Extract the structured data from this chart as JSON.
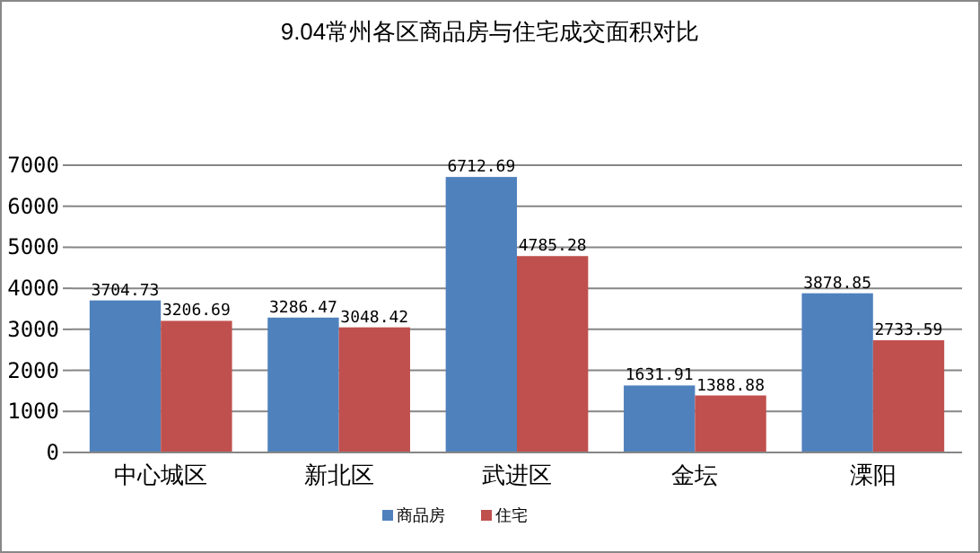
{
  "chart_data": {
    "type": "bar",
    "title": "9.04常州各区商品房与住宅成交面积对比",
    "categories": [
      "中心城区",
      "新北区",
      "武进区",
      "金坛",
      "溧阳"
    ],
    "series": [
      {
        "name": "商品房",
        "color": "#4f81bd",
        "values": [
          3704.73,
          3286.47,
          6712.69,
          1631.91,
          3878.85
        ]
      },
      {
        "name": "住宅",
        "color": "#c0504d",
        "values": [
          3206.69,
          3048.42,
          4785.28,
          1388.88,
          2733.59
        ]
      }
    ],
    "ylim": [
      0,
      7000
    ],
    "yticks": [
      0,
      1000,
      2000,
      3000,
      4000,
      5000,
      6000,
      7000
    ],
    "grid": "y",
    "legend": "bottom",
    "data_labels": true
  }
}
